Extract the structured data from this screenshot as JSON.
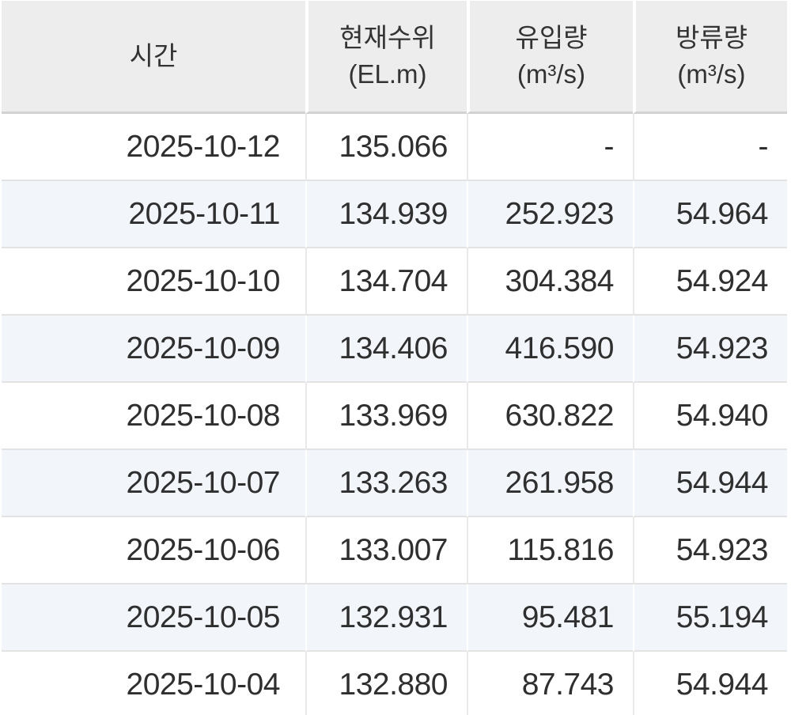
{
  "colors": {
    "header_bg": "#ededed",
    "stripe_bg": "#f2f6fb",
    "header_border": "#d2d2d2",
    "row_border": "#e3e3e3",
    "text": "#2f2f2f"
  },
  "table": {
    "columns": [
      {
        "label": "시간",
        "unit": ""
      },
      {
        "label": "현재수위",
        "unit": "(EL.m)"
      },
      {
        "label": "유입량",
        "unit": "(m³/s)"
      },
      {
        "label": "방류량",
        "unit": "(m³/s)"
      }
    ],
    "rows": [
      [
        "2025-10-12",
        "135.066",
        "-",
        "-"
      ],
      [
        "2025-10-11",
        "134.939",
        "252.923",
        "54.964"
      ],
      [
        "2025-10-10",
        "134.704",
        "304.384",
        "54.924"
      ],
      [
        "2025-10-09",
        "134.406",
        "416.590",
        "54.923"
      ],
      [
        "2025-10-08",
        "133.969",
        "630.822",
        "54.940"
      ],
      [
        "2025-10-07",
        "133.263",
        "261.958",
        "54.944"
      ],
      [
        "2025-10-06",
        "133.007",
        "115.816",
        "54.923"
      ],
      [
        "2025-10-05",
        "132.931",
        "95.481",
        "55.194"
      ],
      [
        "2025-10-04",
        "132.880",
        "87.743",
        "54.944"
      ]
    ]
  }
}
